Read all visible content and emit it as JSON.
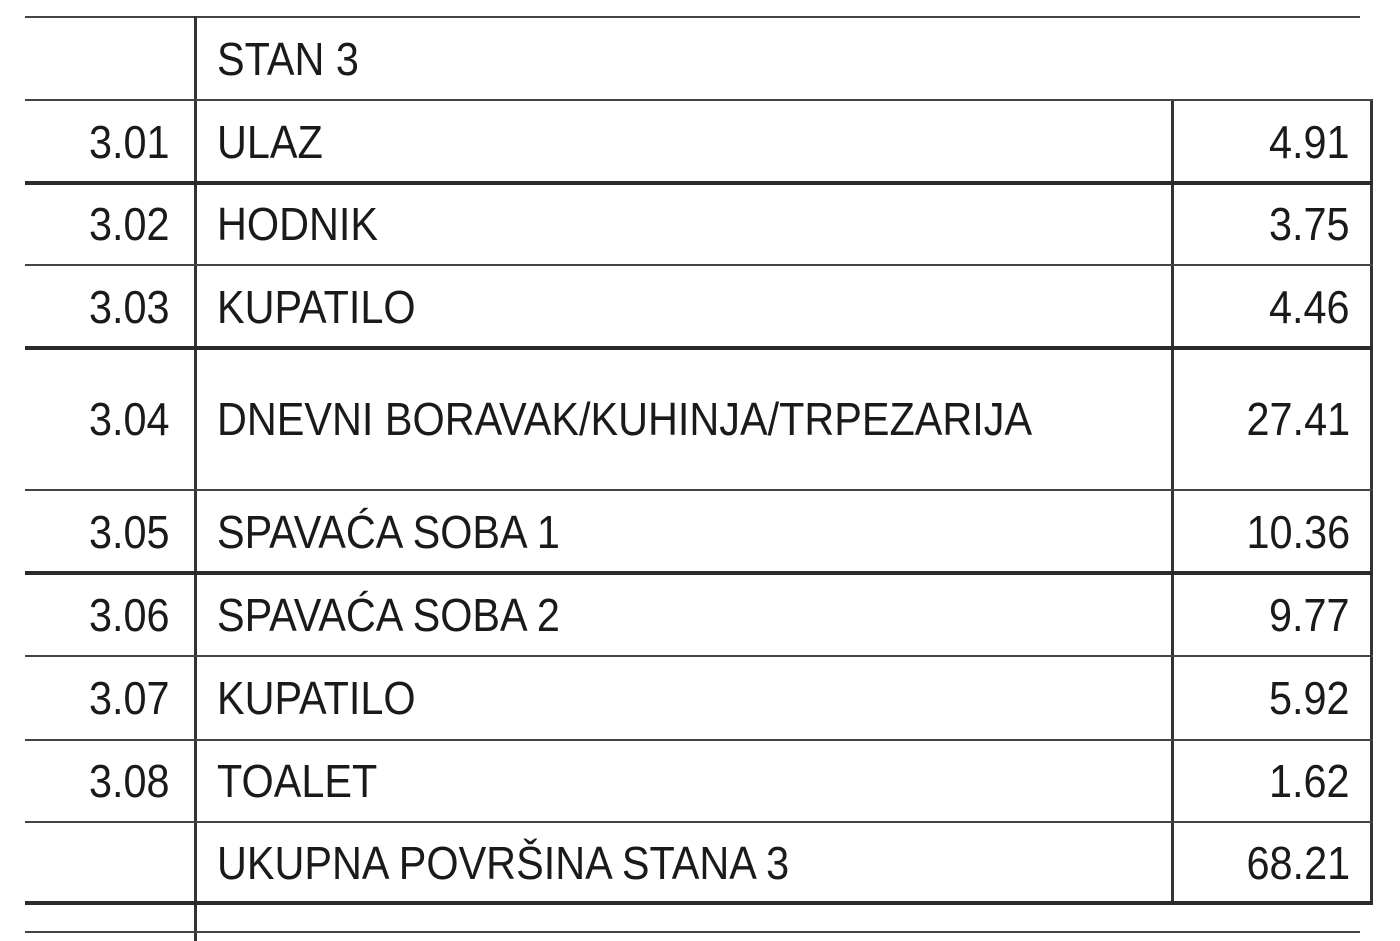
{
  "table": {
    "title": "STAN 3",
    "rows": [
      {
        "no": "3.01",
        "room": "ULAZ",
        "area": "4.91"
      },
      {
        "no": "3.02",
        "room": "HODNIK",
        "area": "3.75"
      },
      {
        "no": "3.03",
        "room": "KUPATILO",
        "area": "4.46"
      },
      {
        "no": "3.04",
        "room": "DNEVNI BORAVAK/KUHINJA/TRPEZARIJA",
        "area": "27.41"
      },
      {
        "no": "3.05",
        "room": "SPAVAĆA SOBA 1",
        "area": "10.36"
      },
      {
        "no": "3.06",
        "room": "SPAVAĆA SOBA 2",
        "area": "9.77"
      },
      {
        "no": "3.07",
        "room": "KUPATILO",
        "area": "5.92"
      },
      {
        "no": "3.08",
        "room": "TOALET",
        "area": "1.62"
      }
    ],
    "total": {
      "label": "UKUPNA POVRŠINA STANA 3",
      "area": "68.21"
    }
  }
}
